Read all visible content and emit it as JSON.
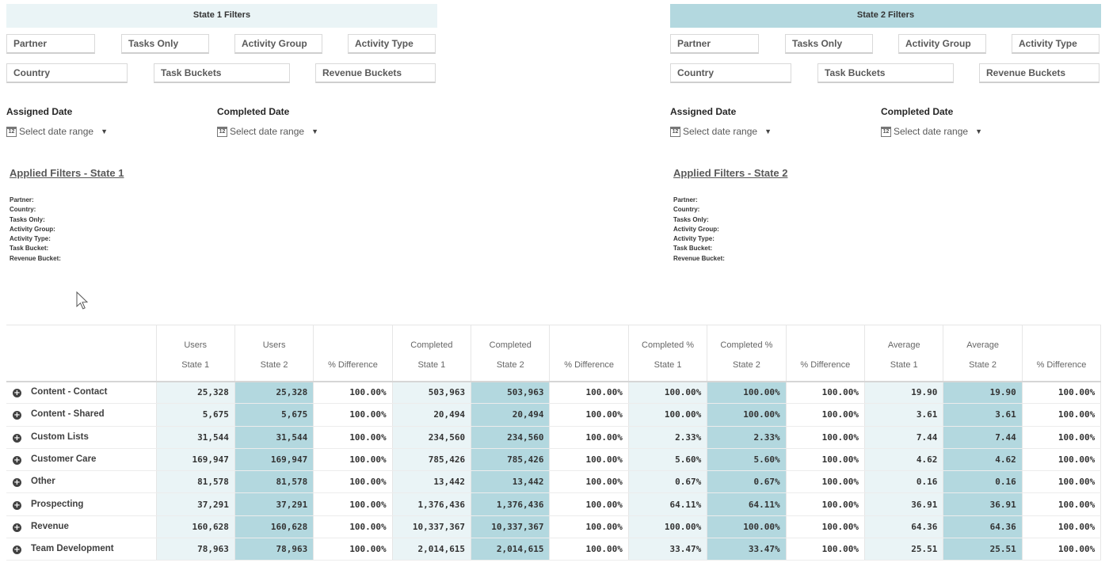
{
  "state1": {
    "header": "State 1 Filters",
    "filters_row1": [
      "Partner",
      "Tasks Only",
      "Activity Group",
      "Activity Type"
    ],
    "filters_row2": [
      "Country",
      "Task Buckets",
      "Revenue Buckets"
    ],
    "assigned_label": "Assigned Date",
    "completed_label": "Completed Date",
    "date_placeholder": "Select date range",
    "applied_title": "Applied Filters - State 1",
    "applied_items": [
      "Partner:",
      "Country:",
      "Tasks Only:",
      "Activity Group:",
      "Activity Type:",
      "Task Bucket:",
      "Revenue Bucket:"
    ]
  },
  "state2": {
    "header": "State 2 Filters",
    "filters_row1": [
      "Partner",
      "Tasks Only",
      "Activity Group",
      "Activity Type"
    ],
    "filters_row2": [
      "Country",
      "Task Buckets",
      "Revenue Buckets"
    ],
    "assigned_label": "Assigned Date",
    "completed_label": "Completed Date",
    "date_placeholder": "Select date range",
    "applied_title": "Applied Filters - State 2",
    "applied_items": [
      "Partner:",
      "Country:",
      "Tasks Only:",
      "Activity Group:",
      "Activity Type:",
      "Task Bucket:",
      "Revenue Bucket:"
    ]
  },
  "calendar_icon_text": "12",
  "table": {
    "columns": [
      {
        "line1": "Users",
        "line2": "State 1"
      },
      {
        "line1": "Users",
        "line2": "State 2"
      },
      {
        "line1": "",
        "line2": "% Difference"
      },
      {
        "line1": "Completed",
        "line2": "State 1"
      },
      {
        "line1": "Completed",
        "line2": "State 2"
      },
      {
        "line1": "",
        "line2": "% Difference"
      },
      {
        "line1": "Completed %",
        "line2": "State 1"
      },
      {
        "line1": "Completed %",
        "line2": "State 2"
      },
      {
        "line1": "",
        "line2": "% Difference"
      },
      {
        "line1": "Average",
        "line2": "State 1"
      },
      {
        "line1": "Average",
        "line2": "State 2"
      },
      {
        "line1": "",
        "line2": "% Difference"
      }
    ],
    "rows": [
      {
        "label": "Content - Contact",
        "cells": [
          "25,328",
          "25,328",
          "100.00%",
          "503,963",
          "503,963",
          "100.00%",
          "100.00%",
          "100.00%",
          "100.00%",
          "19.90",
          "19.90",
          "100.00%"
        ]
      },
      {
        "label": "Content - Shared",
        "cells": [
          "5,675",
          "5,675",
          "100.00%",
          "20,494",
          "20,494",
          "100.00%",
          "100.00%",
          "100.00%",
          "100.00%",
          "3.61",
          "3.61",
          "100.00%"
        ]
      },
      {
        "label": "Custom Lists",
        "cells": [
          "31,544",
          "31,544",
          "100.00%",
          "234,560",
          "234,560",
          "100.00%",
          "2.33%",
          "2.33%",
          "100.00%",
          "7.44",
          "7.44",
          "100.00%"
        ]
      },
      {
        "label": "Customer Care",
        "cells": [
          "169,947",
          "169,947",
          "100.00%",
          "785,426",
          "785,426",
          "100.00%",
          "5.60%",
          "5.60%",
          "100.00%",
          "4.62",
          "4.62",
          "100.00%"
        ]
      },
      {
        "label": "Other",
        "cells": [
          "81,578",
          "81,578",
          "100.00%",
          "13,442",
          "13,442",
          "100.00%",
          "0.67%",
          "0.67%",
          "100.00%",
          "0.16",
          "0.16",
          "100.00%"
        ]
      },
      {
        "label": "Prospecting",
        "cells": [
          "37,291",
          "37,291",
          "100.00%",
          "1,376,436",
          "1,376,436",
          "100.00%",
          "64.11%",
          "64.11%",
          "100.00%",
          "36.91",
          "36.91",
          "100.00%"
        ]
      },
      {
        "label": "Revenue",
        "cells": [
          "160,628",
          "160,628",
          "100.00%",
          "10,337,367",
          "10,337,367",
          "100.00%",
          "100.00%",
          "100.00%",
          "100.00%",
          "64.36",
          "64.36",
          "100.00%"
        ]
      },
      {
        "label": "Team Development",
        "cells": [
          "78,963",
          "78,963",
          "100.00%",
          "2,014,615",
          "2,014,615",
          "100.00%",
          "33.47%",
          "33.47%",
          "100.00%",
          "25.51",
          "25.51",
          "100.00%"
        ]
      }
    ]
  }
}
